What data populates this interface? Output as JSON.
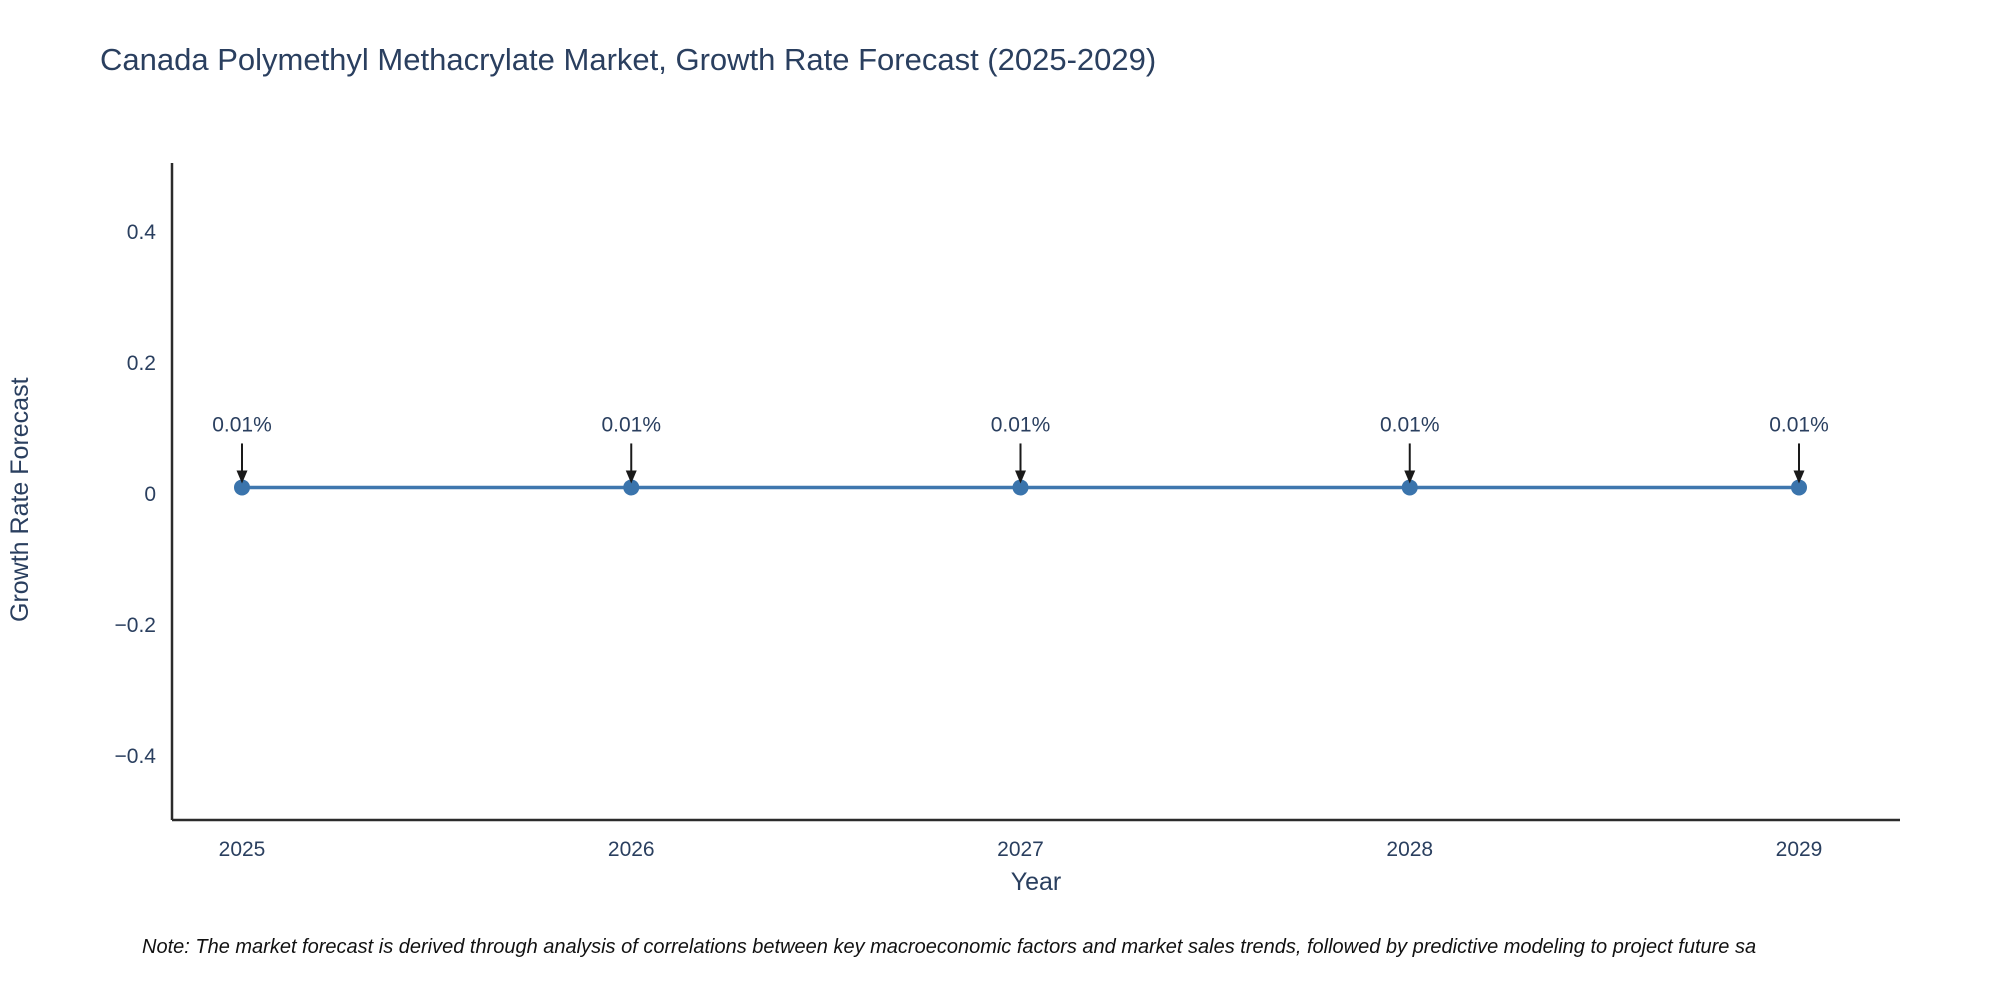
{
  "chart": {
    "title": "Canada Polymethyl Methacrylate Market, Growth Rate Forecast (2025-2029)",
    "xlabel": "Year",
    "ylabel": "Growth Rate Forecast",
    "note": "Note: The market forecast is derived through analysis of correlations between key macroeconomic factors and market sales trends, followed by predictive modeling to project future sa"
  },
  "chart_data": {
    "type": "line",
    "title": "Canada Polymethyl Methacrylate Market, Growth Rate Forecast (2025-2029)",
    "xlabel": "Year",
    "ylabel": "Growth Rate Forecast",
    "x": [
      2025,
      2026,
      2027,
      2028,
      2029
    ],
    "values": [
      0.01,
      0.01,
      0.01,
      0.01,
      0.01
    ],
    "annotations": [
      "0.01%",
      "0.01%",
      "0.01%",
      "0.01%",
      "0.01%"
    ],
    "yticks": [
      0.4,
      0.2,
      0,
      -0.2,
      -0.4
    ],
    "ylim": [
      -0.5,
      0.5
    ],
    "grid": false,
    "legend": "none",
    "line_color": "#3f77ae",
    "marker_color": "#3a74ac",
    "axis_color": "#2b2b2b",
    "annotation_arrow_color": "#1a1a1a",
    "text_color": "#2a3f5f"
  }
}
